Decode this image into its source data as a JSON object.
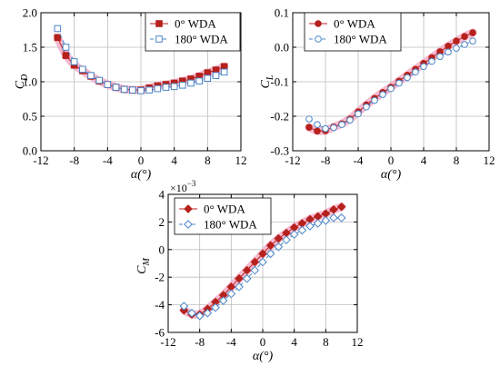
{
  "colors": {
    "series_0": "#b5211c",
    "series_0_glow": "#f4a3c0",
    "series_180": "#4a86c8",
    "grid": "#bdbdbd"
  },
  "chart_data": [
    {
      "type": "line",
      "ylabel": "C",
      "ylabel_sub": "D",
      "xlabel": "α(°)",
      "xlim": [
        -12,
        12
      ],
      "ylim": [
        0,
        2
      ],
      "xticks": [
        -12,
        -8,
        -4,
        0,
        4,
        8,
        12
      ],
      "yticks": [
        0.0,
        0.5,
        1.0,
        1.5,
        2.0
      ],
      "ytick_labels": [
        "0.0",
        "0.5",
        "1.0",
        "1.5",
        "2.0"
      ],
      "legend": "top-right",
      "grid": true,
      "x": [
        -10,
        -9,
        -8,
        -7,
        -6,
        -5,
        -4,
        -3,
        -2,
        -1,
        0,
        1,
        2,
        3,
        4,
        5,
        6,
        7,
        8,
        9,
        10
      ],
      "series": [
        {
          "name": "0° WDA",
          "marker": "square-filled",
          "values": [
            1.64,
            1.38,
            1.24,
            1.16,
            1.08,
            1.01,
            0.96,
            0.92,
            0.89,
            0.88,
            0.88,
            0.91,
            0.94,
            0.96,
            0.98,
            1.01,
            1.04,
            1.08,
            1.13,
            1.17,
            1.22
          ]
        },
        {
          "name": "180° WDA",
          "marker": "square-open",
          "values": [
            1.77,
            1.5,
            1.29,
            1.18,
            1.09,
            1.02,
            0.96,
            0.92,
            0.89,
            0.88,
            0.87,
            0.88,
            0.9,
            0.92,
            0.93,
            0.95,
            0.98,
            1.01,
            1.05,
            1.09,
            1.14
          ]
        }
      ]
    },
    {
      "type": "line",
      "ylabel": "C",
      "ylabel_sub": "L",
      "xlabel": "α(°)",
      "xlim": [
        -12,
        12
      ],
      "ylim": [
        -0.3,
        0.1
      ],
      "xticks": [
        -12,
        -8,
        -4,
        0,
        4,
        8,
        12
      ],
      "yticks": [
        -0.3,
        -0.2,
        -0.1,
        0.0,
        0.1
      ],
      "ytick_labels": [
        "-0.3",
        "-0.2",
        "-0.1",
        "0.0",
        "0.1"
      ],
      "legend": "top-left",
      "grid": true,
      "x": [
        -10,
        -9,
        -8,
        -7,
        -6,
        -5,
        -4,
        -3,
        -2,
        -1,
        0,
        1,
        2,
        3,
        4,
        5,
        6,
        7,
        8,
        9,
        10
      ],
      "series": [
        {
          "name": "0° WDA",
          "marker": "circle-filled",
          "values": [
            -0.232,
            -0.243,
            -0.242,
            -0.231,
            -0.222,
            -0.208,
            -0.187,
            -0.167,
            -0.148,
            -0.131,
            -0.116,
            -0.098,
            -0.081,
            -0.064,
            -0.047,
            -0.03,
            -0.013,
            0.003,
            0.018,
            0.031,
            0.042
          ]
        },
        {
          "name": "180° WDA",
          "marker": "circle-open",
          "values": [
            -0.208,
            -0.224,
            -0.236,
            -0.233,
            -0.224,
            -0.211,
            -0.193,
            -0.173,
            -0.154,
            -0.137,
            -0.12,
            -0.104,
            -0.088,
            -0.072,
            -0.056,
            -0.041,
            -0.027,
            -0.014,
            -0.003,
            0.008,
            0.018
          ]
        }
      ]
    },
    {
      "type": "line",
      "ylabel": "C",
      "ylabel_sub": "M",
      "multiplier": "×10",
      "multiplier_exp": "−3",
      "xlabel": "α(°)",
      "xlim": [
        -12,
        12
      ],
      "ylim": [
        -6,
        4
      ],
      "xticks": [
        -12,
        -8,
        -4,
        0,
        4,
        8,
        12
      ],
      "yticks": [
        -6,
        -4,
        -2,
        0,
        2,
        4
      ],
      "ytick_labels": [
        "-6",
        "-4",
        "-2",
        "0",
        "2",
        "4"
      ],
      "legend": "top-left",
      "grid": true,
      "x": [
        -10,
        -9,
        -8,
        -7,
        -6,
        -5,
        -4,
        -3,
        -2,
        -1,
        0,
        1,
        2,
        3,
        4,
        5,
        6,
        7,
        8,
        9,
        10
      ],
      "series": [
        {
          "name": "0° WDA",
          "marker": "diamond-filled",
          "values": [
            -4.4,
            -4.7,
            -4.7,
            -4.3,
            -3.8,
            -3.3,
            -2.7,
            -2.1,
            -1.5,
            -0.9,
            -0.3,
            0.3,
            0.8,
            1.2,
            1.6,
            1.9,
            2.2,
            2.4,
            2.6,
            2.9,
            3.1
          ]
        },
        {
          "name": "180° WDA",
          "marker": "diamond-open",
          "values": [
            -4.1,
            -4.6,
            -4.8,
            -4.6,
            -4.2,
            -3.7,
            -3.2,
            -2.7,
            -2.1,
            -1.5,
            -0.9,
            -0.3,
            0.2,
            0.7,
            1.1,
            1.4,
            1.7,
            1.9,
            2.1,
            2.3,
            2.3
          ]
        }
      ]
    }
  ]
}
